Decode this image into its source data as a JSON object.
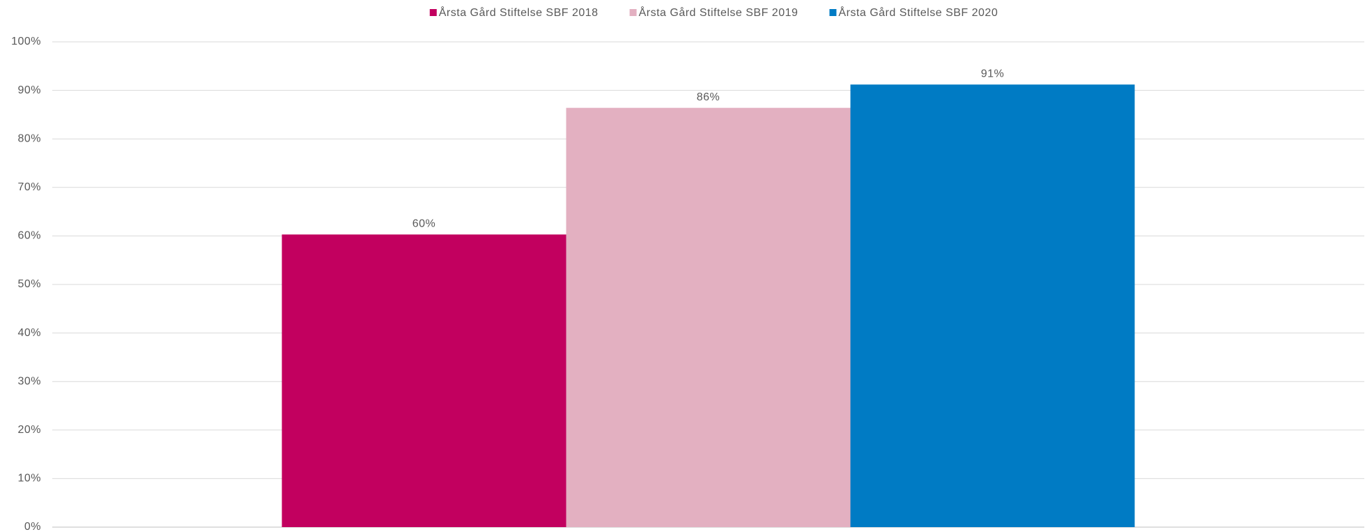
{
  "chart_data": {
    "type": "bar",
    "categories": [
      null
    ],
    "series": [
      {
        "name": "Årsta Gård Stiftelse SBF 2018",
        "color": "#c2005f",
        "values": [
          60.3
        ],
        "value_labels": [
          "60%"
        ]
      },
      {
        "name": "Årsta Gård Stiftelse SBF 2019",
        "color": "#e3b0c1",
        "values": [
          86.4
        ],
        "value_labels": [
          "86%"
        ]
      },
      {
        "name": "Årsta Gård Stiftelse SBF 2020",
        "color": "#007bc4",
        "values": [
          91.2
        ],
        "value_labels": [
          "91%"
        ]
      }
    ],
    "ylim": [
      0,
      100
    ],
    "yticks": [
      {
        "value": 0,
        "label": "0%"
      },
      {
        "value": 10,
        "label": "10%"
      },
      {
        "value": 20,
        "label": "20%"
      },
      {
        "value": 30,
        "label": "30%"
      },
      {
        "value": 40,
        "label": "40%"
      },
      {
        "value": 50,
        "label": "50%"
      },
      {
        "value": 60,
        "label": "60%"
      },
      {
        "value": 70,
        "label": "70%"
      },
      {
        "value": 80,
        "label": "80%"
      },
      {
        "value": 90,
        "label": "90%"
      },
      {
        "value": 100,
        "label": "100%"
      }
    ],
    "grid": true,
    "legend": "top"
  }
}
